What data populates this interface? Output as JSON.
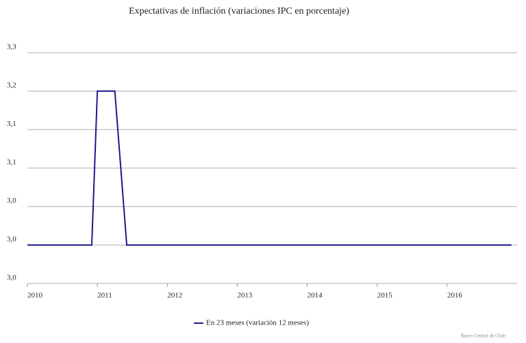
{
  "chart_data": {
    "type": "line",
    "title": "Expectativas de inflación (variaciones IPC en porcentaje)",
    "x": [
      2010,
      2010.92,
      2011,
      2011.25,
      2011.42,
      2016.92
    ],
    "series": [
      {
        "name": "En 23 meses (variación 12 meses)",
        "color": "#1a1a8c",
        "values": [
          3.0,
          3.0,
          3.2,
          3.2,
          3.0,
          3.0
        ]
      }
    ],
    "xlim": [
      2010,
      2017
    ],
    "xticks": [
      2010,
      2011,
      2012,
      2013,
      2014,
      2015,
      2016
    ],
    "ylim": [
      2.95,
      3.25
    ],
    "yticks": [
      {
        "value": 2.95,
        "label": "3,0"
      },
      {
        "value": 3.0,
        "label": "3,0"
      },
      {
        "value": 3.05,
        "label": "3,0"
      },
      {
        "value": 3.1,
        "label": "3,1"
      },
      {
        "value": 3.15,
        "label": "3,1"
      },
      {
        "value": 3.2,
        "label": "3,2"
      },
      {
        "value": 3.25,
        "label": "3,3"
      }
    ],
    "grid": true,
    "legend": "bottom",
    "source": "Banco Central de Chile."
  }
}
